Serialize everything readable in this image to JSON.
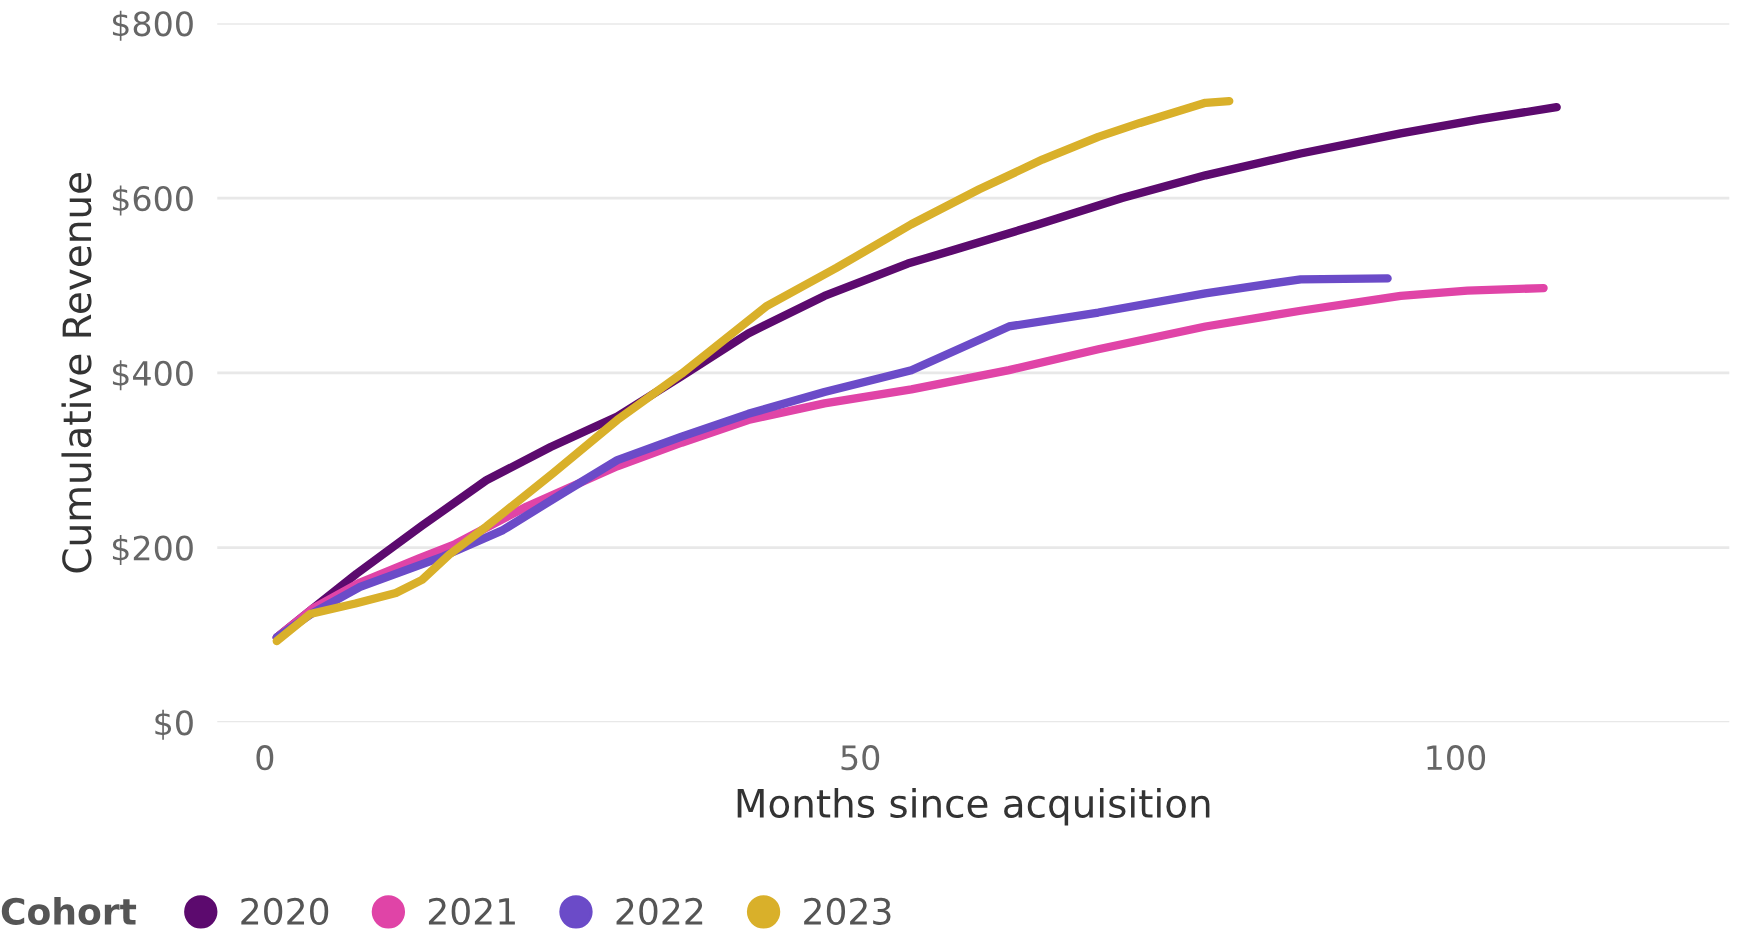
{
  "chart_data": {
    "type": "line",
    "xlabel": "Months since acquisition",
    "ylabel": "Cumulative Revenue",
    "legend_title": "Cohort",
    "legend": "bottom",
    "grid": "y",
    "xlim": [
      -4,
      123
    ],
    "xticks": [
      0,
      50,
      100
    ],
    "ylim": [
      0,
      800
    ],
    "yticks": [
      {
        "value": 0,
        "label": "$0"
      },
      {
        "value": 200,
        "label": "$200"
      },
      {
        "value": 400,
        "label": "$400"
      },
      {
        "value": 600,
        "label": "$600"
      },
      {
        "value": 800,
        "label": "$800"
      }
    ],
    "series": [
      {
        "name": "2020",
        "color": "#5c0a6e",
        "x": [
          1,
          4,
          7.7,
          13.2,
          18.6,
          24,
          29.6,
          35,
          40.6,
          47,
          54,
          57,
          65,
          72,
          79,
          87,
          95.4,
          102,
          108.5
        ],
        "values": [
          97,
          130,
          170,
          225,
          277,
          315,
          350,
          396,
          445,
          488,
          525,
          537,
          570,
          600,
          626,
          651,
          674,
          690,
          704
        ]
      },
      {
        "name": "2021",
        "color": "#e044a7",
        "x": [
          1,
          4,
          8,
          13,
          16,
          22,
          29.6,
          35,
          40.6,
          47,
          54.3,
          62.5,
          70,
          79,
          87,
          95.4,
          101,
          107.4
        ],
        "values": [
          97,
          130,
          160,
          188,
          204,
          247,
          293,
          320,
          346,
          365,
          381,
          403,
          427,
          453,
          471,
          488,
          494,
          497
        ]
      },
      {
        "name": "2022",
        "color": "#6b4bc8",
        "x": [
          1,
          4,
          8,
          15,
          20,
          25,
          29.6,
          35,
          40.6,
          47,
          54.3,
          62.5,
          70,
          79,
          87,
          94.3
        ],
        "values": [
          97,
          125,
          155,
          190,
          220,
          262,
          300,
          327,
          353,
          378,
          403,
          453,
          469,
          491,
          507,
          508
        ]
      },
      {
        "name": "2023",
        "color": "#d9b02a",
        "x": [
          1,
          3.8,
          7.6,
          11,
          13.2,
          15.5,
          18.6,
          24.2,
          29.6,
          35,
          42.1,
          48,
          54.3,
          60,
          65.3,
          70,
          73.5,
          79,
          81
        ],
        "values": [
          93,
          124,
          136,
          148,
          163,
          192,
          224,
          285,
          346,
          399,
          476,
          520,
          570,
          610,
          644,
          670,
          686,
          709,
          711
        ]
      }
    ]
  }
}
